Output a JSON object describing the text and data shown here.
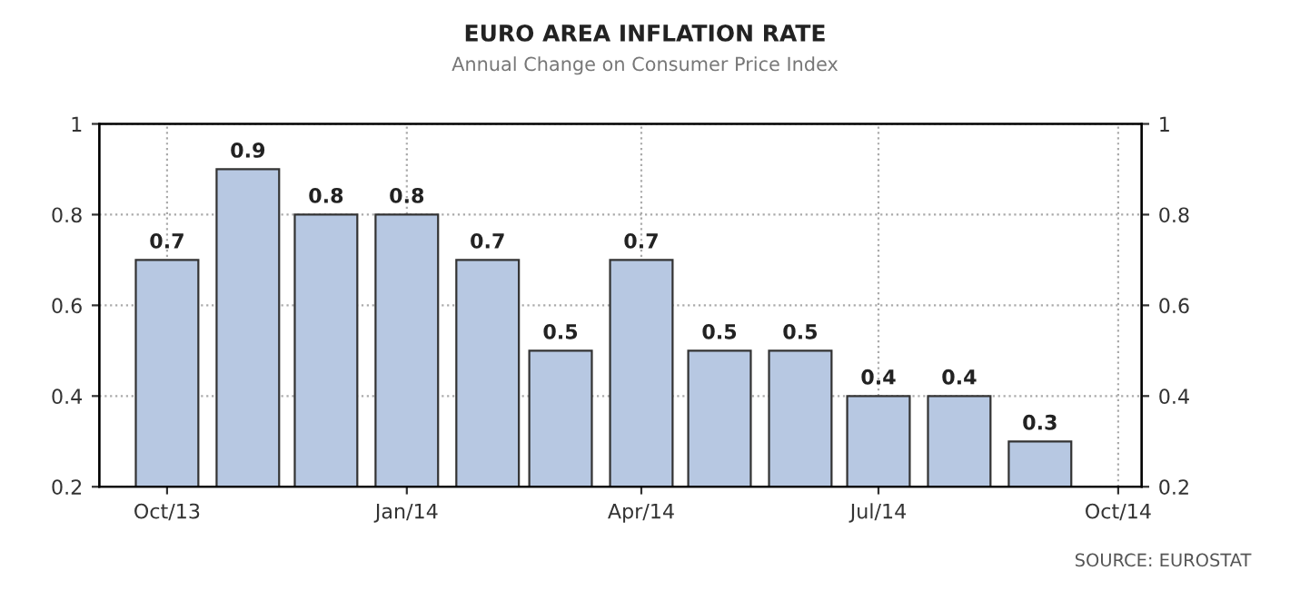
{
  "chart_data": {
    "type": "bar",
    "title": "EURO AREA INFLATION RATE",
    "subtitle": "Annual Change on Consumer Price Index",
    "x": [
      "2013-10",
      "2013-11",
      "2013-12",
      "2014-01",
      "2014-02",
      "2014-03",
      "2014-04",
      "2014-05",
      "2014-06",
      "2014-07",
      "2014-08",
      "2014-09"
    ],
    "values": [
      0.7,
      0.9,
      0.8,
      0.8,
      0.7,
      0.5,
      0.7,
      0.5,
      0.5,
      0.4,
      0.4,
      0.3
    ],
    "color": "#b7c8e2",
    "xlim": [
      "2013-09-05",
      "2014-10-10"
    ],
    "xticks": [
      {
        "value": "2013-10",
        "label": "Oct/13"
      },
      {
        "value": "2014-01",
        "label": "Jan/14"
      },
      {
        "value": "2014-04",
        "label": "Apr/14"
      },
      {
        "value": "2014-07",
        "label": "Jul/14"
      },
      {
        "value": "2014-10",
        "label": "Oct/14"
      }
    ],
    "ylim": [
      0.2,
      1
    ],
    "yticks": [
      0.2,
      0.4,
      0.6,
      0.8,
      1
    ],
    "y2lim": [
      0.2,
      1
    ],
    "y2ticks": [
      0.2,
      0.4,
      0.6,
      0.8,
      1
    ],
    "grid": true,
    "data_labels": true,
    "legend": false,
    "annotations": [
      "SOURCE: EUROSTAT"
    ]
  }
}
